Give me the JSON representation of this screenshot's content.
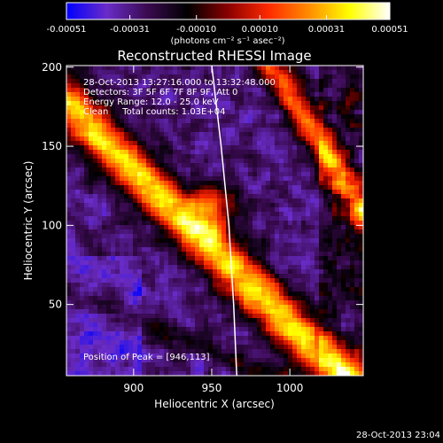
{
  "chart_data": {
    "type": "heatmap",
    "title": "Reconstructed RHESSI Image",
    "info_lines": [
      "28-Oct-2013 13:27:16.000 to 13:32:48.000",
      "Detectors: 3F 5F 6F 7F 8F 9F, Att 0",
      "Energy Range: 12.0 - 25.0 keV",
      "Clean     Total counts: 1.03E+04"
    ],
    "peak_label": "Position of Peak = [946,113]",
    "peak_position": [
      946,
      113
    ],
    "xlabel": "Heliocentric X (arcsec)",
    "ylabel": "Heliocentric Y (arcsec)",
    "xlim": [
      857,
      1047
    ],
    "ylim": [
      5,
      201
    ],
    "xticks": [
      900,
      950,
      1000
    ],
    "yticks": [
      50,
      100,
      150,
      200
    ],
    "colorbar": {
      "ticks": [
        "-0.00051",
        "-0.00031",
        "-0.00010",
        "0.00010",
        "0.00031",
        "0.00051"
      ],
      "tick_values": [
        -0.00051,
        -0.00031,
        -0.0001,
        0.0001,
        0.00031,
        0.00051
      ],
      "range": [
        -0.00051,
        0.00051
      ],
      "units_label": "(photons cm⁻² s⁻¹ asec⁻²)"
    },
    "limb_curve": [
      [
        950,
        201
      ],
      [
        956,
        150
      ],
      [
        961,
        100
      ],
      [
        964,
        50
      ],
      [
        966,
        5
      ]
    ],
    "colors": {
      "background": "#000000",
      "colormap": [
        "#0000ff",
        "#6a2cc8",
        "#3a0a50",
        "#000000",
        "#8a0000",
        "#ff2a00",
        "#ff8c00",
        "#ffff00",
        "#ffffff"
      ]
    }
  },
  "footer": {
    "timestamp": "28-Oct-2013 23:04"
  }
}
